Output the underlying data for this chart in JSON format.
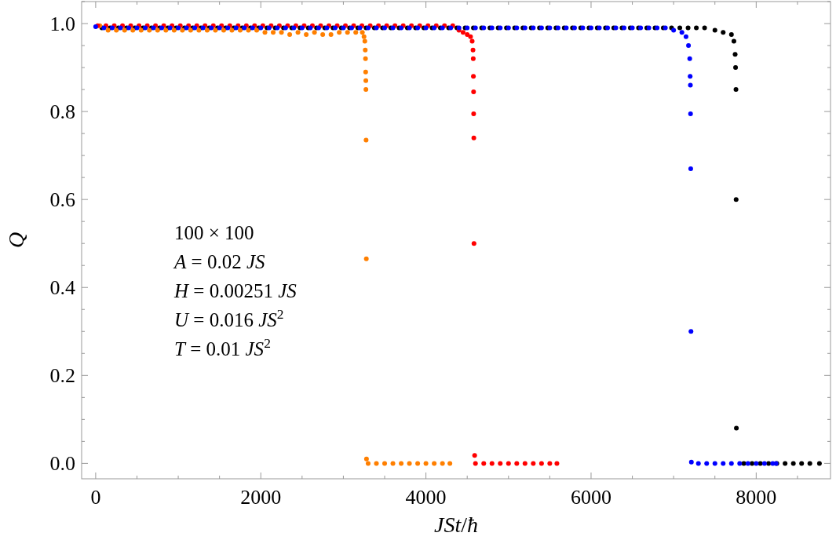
{
  "chart_data": {
    "type": "scatter",
    "xlabel": "JSt/ħ",
    "ylabel": "Q",
    "xlim": [
      -170,
      8900
    ],
    "ylim": [
      -0.035,
      1.05
    ],
    "xticks": [
      0,
      {
        "value": 500,
        "label": null
      },
      {
        "value": 1000,
        "label": null
      },
      {
        "value": 1500,
        "label": null
      },
      2000,
      {
        "value": 2500,
        "label": null
      },
      {
        "value": 3000,
        "label": null
      },
      {
        "value": 3500,
        "label": null
      },
      4000,
      {
        "value": 4500,
        "label": null
      },
      {
        "value": 5000,
        "label": null
      },
      {
        "value": 5500,
        "label": null
      },
      6000,
      {
        "value": 6500,
        "label": null
      },
      {
        "value": 7000,
        "label": null
      },
      {
        "value": 7500,
        "label": null
      },
      8000,
      {
        "value": 8500,
        "label": null
      }
    ],
    "yticks": [
      {
        "value": 0,
        "label": "0.0"
      },
      {
        "value": 0.05,
        "label": null
      },
      {
        "value": 0.1,
        "label": null
      },
      {
        "value": 0.15,
        "label": null
      },
      0.2,
      {
        "value": 0.25,
        "label": null
      },
      {
        "value": 0.3,
        "label": null
      },
      {
        "value": 0.35,
        "label": null
      },
      0.4,
      {
        "value": 0.45,
        "label": null
      },
      {
        "value": 0.5,
        "label": null
      },
      {
        "value": 0.55,
        "label": null
      },
      0.6,
      {
        "value": 0.65,
        "label": null
      },
      {
        "value": 0.7,
        "label": null
      },
      {
        "value": 0.75,
        "label": null
      },
      0.8,
      {
        "value": 0.85,
        "label": null
      },
      {
        "value": 0.9,
        "label": null
      },
      {
        "value": 0.95,
        "label": null
      },
      {
        "value": 1,
        "label": "1.0"
      },
      {
        "value": 1.05,
        "label": null
      }
    ],
    "grid": false,
    "marker": "circle",
    "annotations": [
      "100 × 100",
      "A = 0.02 JS",
      "H = 0.00251 JS",
      "U = 0.016 JS$^{2}$",
      "T = 0.01 JS$^{2}$"
    ],
    "series": [
      {
        "color": "#000000",
        "x": [
          75,
          175,
          275,
          375,
          475,
          575,
          675,
          775,
          875,
          975,
          1075,
          1175,
          1275,
          1375,
          1475,
          1575,
          1675,
          1775,
          1875,
          1975,
          2075,
          2175,
          2275,
          2375,
          2475,
          2575,
          2675,
          2775,
          2875,
          2975,
          3075,
          3175,
          3275,
          3375,
          3475,
          3575,
          3675,
          3775,
          3875,
          3975,
          4075,
          4175,
          4275,
          4375,
          4475,
          4575,
          4675,
          4775,
          4875,
          4975,
          5075,
          5175,
          5275,
          5375,
          5475,
          5575,
          5675,
          5775,
          5875,
          5975,
          6075,
          6175,
          6275,
          6375,
          6475,
          6575,
          6675,
          6775,
          6875,
          6975,
          7075,
          7175,
          7275,
          7375,
          7500,
          7600,
          7700,
          7730,
          7745,
          7750,
          7755,
          7757,
          7760,
          7850,
          7950,
          8050,
          8150,
          8250,
          8350,
          8450,
          8550,
          8650,
          8766
        ],
        "values": [
          0.99,
          0.99,
          0.99,
          0.99,
          0.99,
          0.99,
          0.99,
          0.99,
          0.99,
          0.99,
          0.99,
          0.99,
          0.99,
          0.99,
          0.99,
          0.99,
          0.99,
          0.99,
          0.99,
          0.99,
          0.99,
          0.99,
          0.99,
          0.99,
          0.99,
          0.99,
          0.99,
          0.99,
          0.99,
          0.99,
          0.99,
          0.99,
          0.99,
          0.99,
          0.99,
          0.99,
          0.99,
          0.99,
          0.99,
          0.99,
          0.99,
          0.99,
          0.99,
          0.99,
          0.99,
          0.99,
          0.99,
          0.99,
          0.99,
          0.99,
          0.99,
          0.99,
          0.99,
          0.99,
          0.99,
          0.99,
          0.99,
          0.99,
          0.99,
          0.99,
          0.99,
          0.99,
          0.99,
          0.99,
          0.99,
          0.99,
          0.99,
          0.99,
          0.99,
          0.99,
          0.99,
          0.99,
          0.99,
          0.99,
          0.985,
          0.98,
          0.975,
          0.96,
          0.93,
          0.9,
          0.85,
          0.6,
          0.08,
          0,
          0,
          0,
          0,
          0,
          0,
          0,
          0,
          0,
          0
        ]
      },
      {
        "color": "#ff7f00",
        "x": [
          50,
          150,
          250,
          350,
          450,
          550,
          650,
          750,
          850,
          950,
          1050,
          1150,
          1250,
          1350,
          1450,
          1550,
          1650,
          1750,
          1850,
          1950,
          2050,
          2150,
          2250,
          2350,
          2450,
          2550,
          2650,
          2750,
          2850,
          2950,
          3050,
          3150,
          3230,
          3250,
          3260,
          3265,
          3268,
          3270,
          3272,
          3273,
          3275,
          3278,
          3280,
          3300,
          3400,
          3500,
          3600,
          3700,
          3800,
          3900,
          4000,
          4100,
          4200,
          4290
        ],
        "values": [
          0.995,
          0.985,
          0.985,
          0.985,
          0.985,
          0.985,
          0.985,
          0.985,
          0.985,
          0.985,
          0.985,
          0.985,
          0.985,
          0.985,
          0.985,
          0.985,
          0.985,
          0.985,
          0.985,
          0.985,
          0.98,
          0.98,
          0.98,
          0.975,
          0.98,
          0.975,
          0.98,
          0.975,
          0.975,
          0.98,
          0.98,
          0.98,
          0.98,
          0.97,
          0.96,
          0.94,
          0.92,
          0.89,
          0.87,
          0.85,
          0.735,
          0.465,
          0.01,
          0,
          0,
          0,
          0,
          0,
          0,
          0,
          0,
          0,
          0,
          0
        ]
      },
      {
        "color": "#ff0000",
        "x": [
          25,
          125,
          225,
          325,
          425,
          525,
          625,
          725,
          825,
          925,
          1025,
          1125,
          1225,
          1325,
          1425,
          1525,
          1625,
          1725,
          1825,
          1925,
          2025,
          2125,
          2225,
          2325,
          2425,
          2525,
          2625,
          2725,
          2825,
          2925,
          3025,
          3125,
          3225,
          3325,
          3425,
          3525,
          3625,
          3725,
          3825,
          3925,
          4025,
          4125,
          4225,
          4325,
          4400,
          4450,
          4500,
          4540,
          4560,
          4570,
          4573,
          4575,
          4577,
          4578,
          4580,
          4582,
          4590,
          4600,
          4700,
          4800,
          4900,
          5000,
          5100,
          5200,
          5300,
          5400,
          5500,
          5586
        ],
        "values": [
          0.995,
          0.995,
          0.995,
          0.995,
          0.995,
          0.995,
          0.995,
          0.995,
          0.995,
          0.995,
          0.995,
          0.995,
          0.995,
          0.995,
          0.995,
          0.995,
          0.995,
          0.995,
          0.995,
          0.995,
          0.995,
          0.995,
          0.995,
          0.995,
          0.995,
          0.995,
          0.995,
          0.995,
          0.995,
          0.995,
          0.995,
          0.995,
          0.995,
          0.995,
          0.995,
          0.995,
          0.995,
          0.995,
          0.995,
          0.995,
          0.995,
          0.995,
          0.995,
          0.995,
          0.985,
          0.98,
          0.975,
          0.97,
          0.96,
          0.94,
          0.92,
          0.88,
          0.845,
          0.795,
          0.74,
          0.5,
          0.018,
          0,
          0,
          0,
          0,
          0,
          0,
          0,
          0,
          0,
          0,
          0
        ]
      },
      {
        "color": "#0000ff",
        "x": [
          0,
          100,
          200,
          300,
          400,
          500,
          600,
          700,
          800,
          900,
          1000,
          1100,
          1200,
          1300,
          1400,
          1500,
          1600,
          1700,
          1800,
          1900,
          2000,
          2100,
          2200,
          2300,
          2400,
          2500,
          2600,
          2700,
          2800,
          2900,
          3000,
          3100,
          3200,
          3300,
          3400,
          3500,
          3600,
          3700,
          3800,
          3900,
          4000,
          4100,
          4200,
          4300,
          4400,
          4500,
          4600,
          4700,
          4800,
          4900,
          5000,
          5100,
          5200,
          5300,
          5400,
          5500,
          5600,
          5700,
          5800,
          5900,
          6000,
          6100,
          6200,
          6300,
          6400,
          6500,
          6600,
          6700,
          6800,
          6900,
          7000,
          7100,
          7150,
          7180,
          7195,
          7200,
          7203,
          7205,
          7207,
          7210,
          7215,
          7300,
          7400,
          7500,
          7600,
          7700,
          7800,
          7900,
          8000,
          8100,
          8200,
          8240
        ],
        "values": [
          0.993,
          0.99,
          0.99,
          0.99,
          0.99,
          0.99,
          0.99,
          0.99,
          0.99,
          0.99,
          0.99,
          0.99,
          0.99,
          0.99,
          0.99,
          0.99,
          0.99,
          0.99,
          0.99,
          0.99,
          0.99,
          0.99,
          0.99,
          0.99,
          0.99,
          0.99,
          0.99,
          0.99,
          0.99,
          0.99,
          0.99,
          0.99,
          0.99,
          0.99,
          0.99,
          0.99,
          0.99,
          0.99,
          0.99,
          0.99,
          0.99,
          0.99,
          0.99,
          0.99,
          0.99,
          0.99,
          0.99,
          0.99,
          0.99,
          0.99,
          0.99,
          0.99,
          0.99,
          0.99,
          0.99,
          0.99,
          0.99,
          0.99,
          0.99,
          0.99,
          0.99,
          0.99,
          0.99,
          0.99,
          0.99,
          0.99,
          0.99,
          0.99,
          0.99,
          0.99,
          0.985,
          0.98,
          0.97,
          0.95,
          0.92,
          0.88,
          0.86,
          0.795,
          0.67,
          0.3,
          0.003,
          0,
          0,
          0,
          0,
          0,
          0,
          0,
          0,
          0,
          0,
          0
        ]
      }
    ]
  }
}
